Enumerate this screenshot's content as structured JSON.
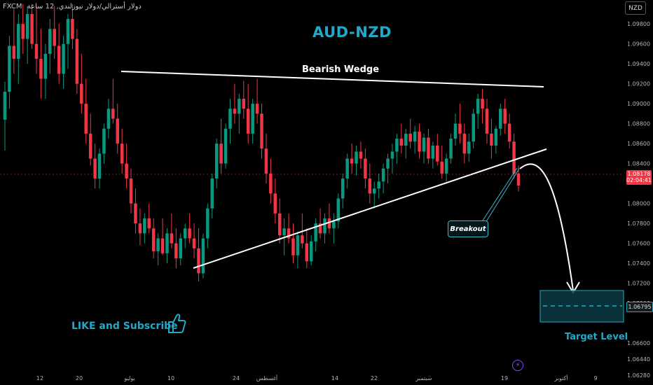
{
  "header": {
    "broker": "FXCM",
    "symbol_desc": "دولار أسترالي/دولار نيوزلندي, 12 ساعة",
    "currency_badge": "NZD"
  },
  "chart_data": {
    "type": "candlestick",
    "title": "AUD-NZD",
    "ylim": [
      1.0618,
      1.1004
    ],
    "y_ticks": [
      1.098,
      1.096,
      1.094,
      1.092,
      1.09,
      1.088,
      1.086,
      1.084,
      1.08,
      1.078,
      1.076,
      1.074,
      1.072,
      1.07,
      1.066,
      1.0644,
      1.0628
    ],
    "y_tick_labels": [
      "1.09800",
      "1.09600",
      "1.09400",
      "1.09200",
      "1.09000",
      "1.08800",
      "1.08600",
      "1.08400",
      "1.08000",
      "1.07800",
      "1.07600",
      "1.07400",
      "1.07200",
      "1.07000",
      "1.06600",
      "1.06440",
      "1.06280"
    ],
    "x_tick_labels": [
      "12",
      "20",
      "يوليو",
      "10",
      "24",
      "أغسطس",
      "14",
      "22",
      "سبتمبر",
      "19",
      "أكتوبر",
      "9"
    ],
    "current_price": "1.08178",
    "countdown": "02:04:41",
    "target_price": "1.06795",
    "up_color": "#089981",
    "down_color": "#f23645",
    "accent_color": "#22a9c9",
    "candles": [
      [
        1.0884,
        1.0922,
        1.0853,
        1.0912
      ],
      [
        1.0912,
        1.0968,
        1.0895,
        1.0958
      ],
      [
        1.0958,
        1.0995,
        1.093,
        1.0945
      ],
      [
        1.0945,
        1.099,
        1.092,
        1.098
      ],
      [
        1.098,
        1.1,
        1.095,
        1.0965
      ],
      [
        1.0965,
        1.0998,
        1.094,
        1.099
      ],
      [
        1.099,
        1.1,
        1.0955,
        1.096
      ],
      [
        1.096,
        1.0998,
        1.093,
        1.0945
      ],
      [
        1.0945,
        1.0975,
        1.0905,
        1.0925
      ],
      [
        1.0925,
        1.096,
        1.0905,
        1.095
      ],
      [
        1.095,
        1.0985,
        1.093,
        1.0975
      ],
      [
        1.0975,
        1.0998,
        1.0945,
        1.0958
      ],
      [
        1.0958,
        1.098,
        1.092,
        1.093
      ],
      [
        1.093,
        1.0968,
        1.0915,
        1.096
      ],
      [
        1.096,
        1.099,
        1.0935,
        1.0985
      ],
      [
        1.0985,
        1.1,
        1.0955,
        1.0965
      ],
      [
        1.0965,
        1.0975,
        1.091,
        1.092
      ],
      [
        1.092,
        1.095,
        1.089,
        1.09
      ],
      [
        1.09,
        1.0925,
        1.086,
        1.087
      ],
      [
        1.087,
        1.089,
        1.0838,
        1.0845
      ],
      [
        1.0845,
        1.086,
        1.0815,
        1.0825
      ],
      [
        1.0825,
        1.0855,
        1.0815,
        1.085
      ],
      [
        1.085,
        1.088,
        1.084,
        1.0875
      ],
      [
        1.0875,
        1.0905,
        1.0865,
        1.0895
      ],
      [
        1.0895,
        1.0925,
        1.088,
        1.0885
      ],
      [
        1.0885,
        1.09,
        1.085,
        1.086
      ],
      [
        1.086,
        1.0875,
        1.083,
        1.084
      ],
      [
        1.084,
        1.086,
        1.0815,
        1.0825
      ],
      [
        1.0825,
        1.0835,
        1.079,
        1.08
      ],
      [
        1.08,
        1.0815,
        1.077,
        1.078
      ],
      [
        1.078,
        1.0795,
        1.0758,
        1.077
      ],
      [
        1.077,
        1.079,
        1.076,
        1.0785
      ],
      [
        1.0785,
        1.08,
        1.077,
        1.0775
      ],
      [
        1.0775,
        1.0785,
        1.0745,
        1.0752
      ],
      [
        1.0752,
        1.077,
        1.0738,
        1.0765
      ],
      [
        1.0765,
        1.0785,
        1.0748,
        1.075
      ],
      [
        1.075,
        1.0775,
        1.074,
        1.077
      ],
      [
        1.077,
        1.079,
        1.0755,
        1.076
      ],
      [
        1.076,
        1.0775,
        1.0735,
        1.0745
      ],
      [
        1.0745,
        1.077,
        1.0738,
        1.0765
      ],
      [
        1.0765,
        1.078,
        1.0755,
        1.0775
      ],
      [
        1.0775,
        1.079,
        1.076,
        1.0765
      ],
      [
        1.0765,
        1.078,
        1.0745,
        1.0755
      ],
      [
        1.0755,
        1.0775,
        1.0722,
        1.073
      ],
      [
        1.073,
        1.077,
        1.0725,
        1.0765
      ],
      [
        1.0765,
        1.08,
        1.0755,
        1.0795
      ],
      [
        1.0795,
        1.083,
        1.0785,
        1.0825
      ],
      [
        1.0825,
        1.0865,
        1.0815,
        1.086
      ],
      [
        1.086,
        1.0885,
        1.083,
        1.084
      ],
      [
        1.084,
        1.088,
        1.0835,
        1.0875
      ],
      [
        1.0875,
        1.0905,
        1.086,
        1.0895
      ],
      [
        1.0895,
        1.092,
        1.088,
        1.089
      ],
      [
        1.089,
        1.091,
        1.087,
        1.0905
      ],
      [
        1.0905,
        1.0923,
        1.0885,
        1.0895
      ],
      [
        1.0895,
        1.092,
        1.086,
        1.087
      ],
      [
        1.087,
        1.0905,
        1.086,
        1.09
      ],
      [
        1.09,
        1.0925,
        1.088,
        1.089
      ],
      [
        1.089,
        1.09,
        1.0845,
        1.0855
      ],
      [
        1.0855,
        1.087,
        1.082,
        1.083
      ],
      [
        1.083,
        1.0845,
        1.08,
        1.081
      ],
      [
        1.081,
        1.0825,
        1.078,
        1.079
      ],
      [
        1.079,
        1.0805,
        1.076,
        1.0768
      ],
      [
        1.0768,
        1.0785,
        1.0748,
        1.0775
      ],
      [
        1.0775,
        1.079,
        1.076,
        1.0765
      ],
      [
        1.0765,
        1.078,
        1.074,
        1.0748
      ],
      [
        1.0748,
        1.0772,
        1.0735,
        1.0768
      ],
      [
        1.0768,
        1.079,
        1.0755,
        1.076
      ],
      [
        1.076,
        1.0775,
        1.0735,
        1.0742
      ],
      [
        1.0742,
        1.0768,
        1.0738,
        1.0762
      ],
      [
        1.0762,
        1.0785,
        1.0752,
        1.078
      ],
      [
        1.078,
        1.0795,
        1.0765,
        1.077
      ],
      [
        1.077,
        1.079,
        1.076,
        1.0785
      ],
      [
        1.0785,
        1.08,
        1.077,
        1.0775
      ],
      [
        1.0775,
        1.079,
        1.076,
        1.0782
      ],
      [
        1.0782,
        1.081,
        1.0775,
        1.0805
      ],
      [
        1.0805,
        1.083,
        1.0795,
        1.0825
      ],
      [
        1.0825,
        1.085,
        1.0815,
        1.0845
      ],
      [
        1.0845,
        1.086,
        1.083,
        1.084
      ],
      [
        1.084,
        1.0858,
        1.0828,
        1.0852
      ],
      [
        1.0852,
        1.0862,
        1.0835,
        1.0845
      ],
      [
        1.0845,
        1.0855,
        1.0815,
        1.0825
      ],
      [
        1.0825,
        1.084,
        1.08,
        1.081
      ],
      [
        1.081,
        1.0822,
        1.0795,
        1.0815
      ],
      [
        1.0815,
        1.083,
        1.0805,
        1.0822
      ],
      [
        1.0822,
        1.084,
        1.081,
        1.0835
      ],
      [
        1.0835,
        1.085,
        1.082,
        1.0845
      ],
      [
        1.0845,
        1.086,
        1.083,
        1.0852
      ],
      [
        1.0852,
        1.087,
        1.084,
        1.0865
      ],
      [
        1.0865,
        1.088,
        1.085,
        1.0858
      ],
      [
        1.0858,
        1.0875,
        1.0845,
        1.087
      ],
      [
        1.087,
        1.0885,
        1.0855,
        1.0862
      ],
      [
        1.0862,
        1.0878,
        1.085,
        1.0872
      ],
      [
        1.0872,
        1.088,
        1.0845,
        1.0852
      ],
      [
        1.0852,
        1.087,
        1.084,
        1.0866
      ],
      [
        1.0866,
        1.0875,
        1.084,
        1.0845
      ],
      [
        1.0845,
        1.0862,
        1.0835,
        1.0858
      ],
      [
        1.0858,
        1.087,
        1.0838,
        1.0842
      ],
      [
        1.0842,
        1.0858,
        1.0825,
        1.083
      ],
      [
        1.083,
        1.085,
        1.0822,
        1.0845
      ],
      [
        1.0845,
        1.087,
        1.084,
        1.0865
      ],
      [
        1.0865,
        1.089,
        1.0858,
        1.088
      ],
      [
        1.088,
        1.09,
        1.086,
        1.087
      ],
      [
        1.087,
        1.088,
        1.084,
        1.085
      ],
      [
        1.085,
        1.087,
        1.0842,
        1.0862
      ],
      [
        1.0862,
        1.0895,
        1.0855,
        1.089
      ],
      [
        1.089,
        1.091,
        1.0875,
        1.0905
      ],
      [
        1.0905,
        1.0915,
        1.088,
        1.0895
      ],
      [
        1.0895,
        1.0905,
        1.086,
        1.087
      ],
      [
        1.087,
        1.0885,
        1.0845,
        1.0858
      ],
      [
        1.0858,
        1.0878,
        1.085,
        1.0875
      ],
      [
        1.0875,
        1.09,
        1.0868,
        1.0895
      ],
      [
        1.0895,
        1.0905,
        1.087,
        1.088
      ],
      [
        1.088,
        1.089,
        1.0855,
        1.0862
      ],
      [
        1.0862,
        1.087,
        1.0825,
        1.083
      ],
      [
        1.083,
        1.0838,
        1.0812,
        1.0818
      ]
    ]
  },
  "annotations": {
    "wedge_label": "Bearish Wedge",
    "breakout_label": "Breakout",
    "cta_text": "LIKE and Subscribe",
    "target_label": "Target Level"
  }
}
